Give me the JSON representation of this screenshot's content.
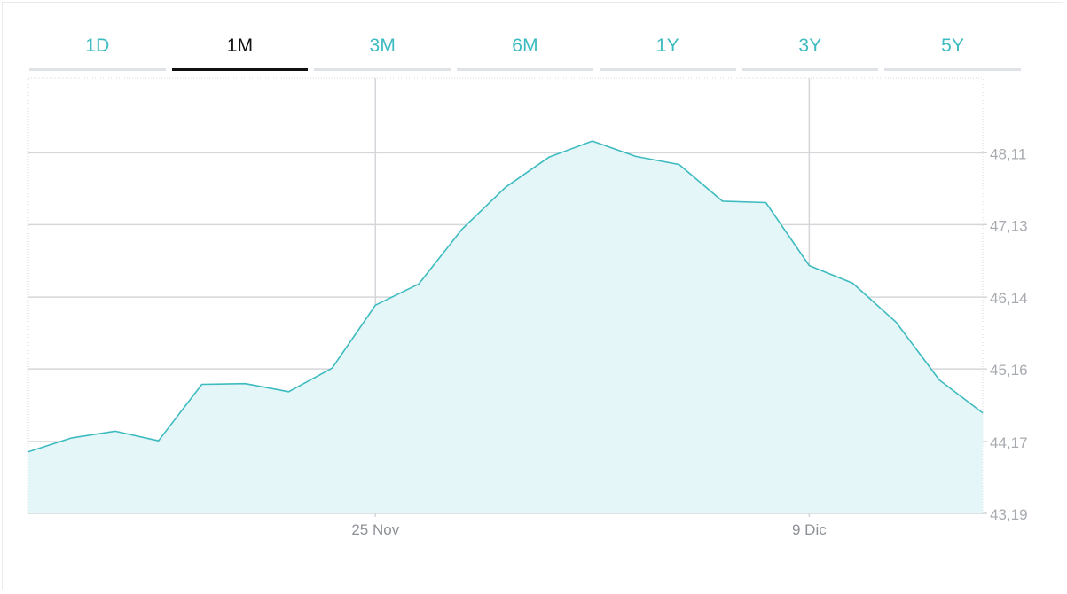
{
  "tabs": [
    {
      "label": "1D",
      "active": false
    },
    {
      "label": "1M",
      "active": true
    },
    {
      "label": "3M",
      "active": false
    },
    {
      "label": "6M",
      "active": false
    },
    {
      "label": "1Y",
      "active": false
    },
    {
      "label": "3Y",
      "active": false
    },
    {
      "label": "5Y",
      "active": false
    }
  ],
  "colors": {
    "accent": "#3dbbc0",
    "fill": "#e4f6f7",
    "grid": "#d4d6d9",
    "tick_text": "#a7abb0",
    "active_tab": "#111111"
  },
  "chart_data": {
    "type": "area",
    "title": "",
    "xlabel": "",
    "ylabel": "",
    "x_tick_labels": [
      "25 Nov",
      "9 Dic"
    ],
    "y_tick_labels": [
      "43,19",
      "44,17",
      "45,16",
      "46,14",
      "47,13",
      "48,11"
    ],
    "y_ticks": [
      43.19,
      44.17,
      45.16,
      46.14,
      47.13,
      48.11
    ],
    "ylim": [
      43.19,
      49.13
    ],
    "grid": true,
    "legend": "none",
    "x_tick_index": [
      8,
      18
    ],
    "values": [
      44.03,
      44.22,
      44.31,
      44.18,
      44.95,
      44.96,
      44.85,
      45.17,
      46.03,
      46.32,
      47.07,
      47.64,
      48.05,
      48.27,
      48.06,
      47.95,
      47.45,
      47.43,
      46.57,
      46.33,
      45.8,
      45.01,
      44.56
    ]
  }
}
